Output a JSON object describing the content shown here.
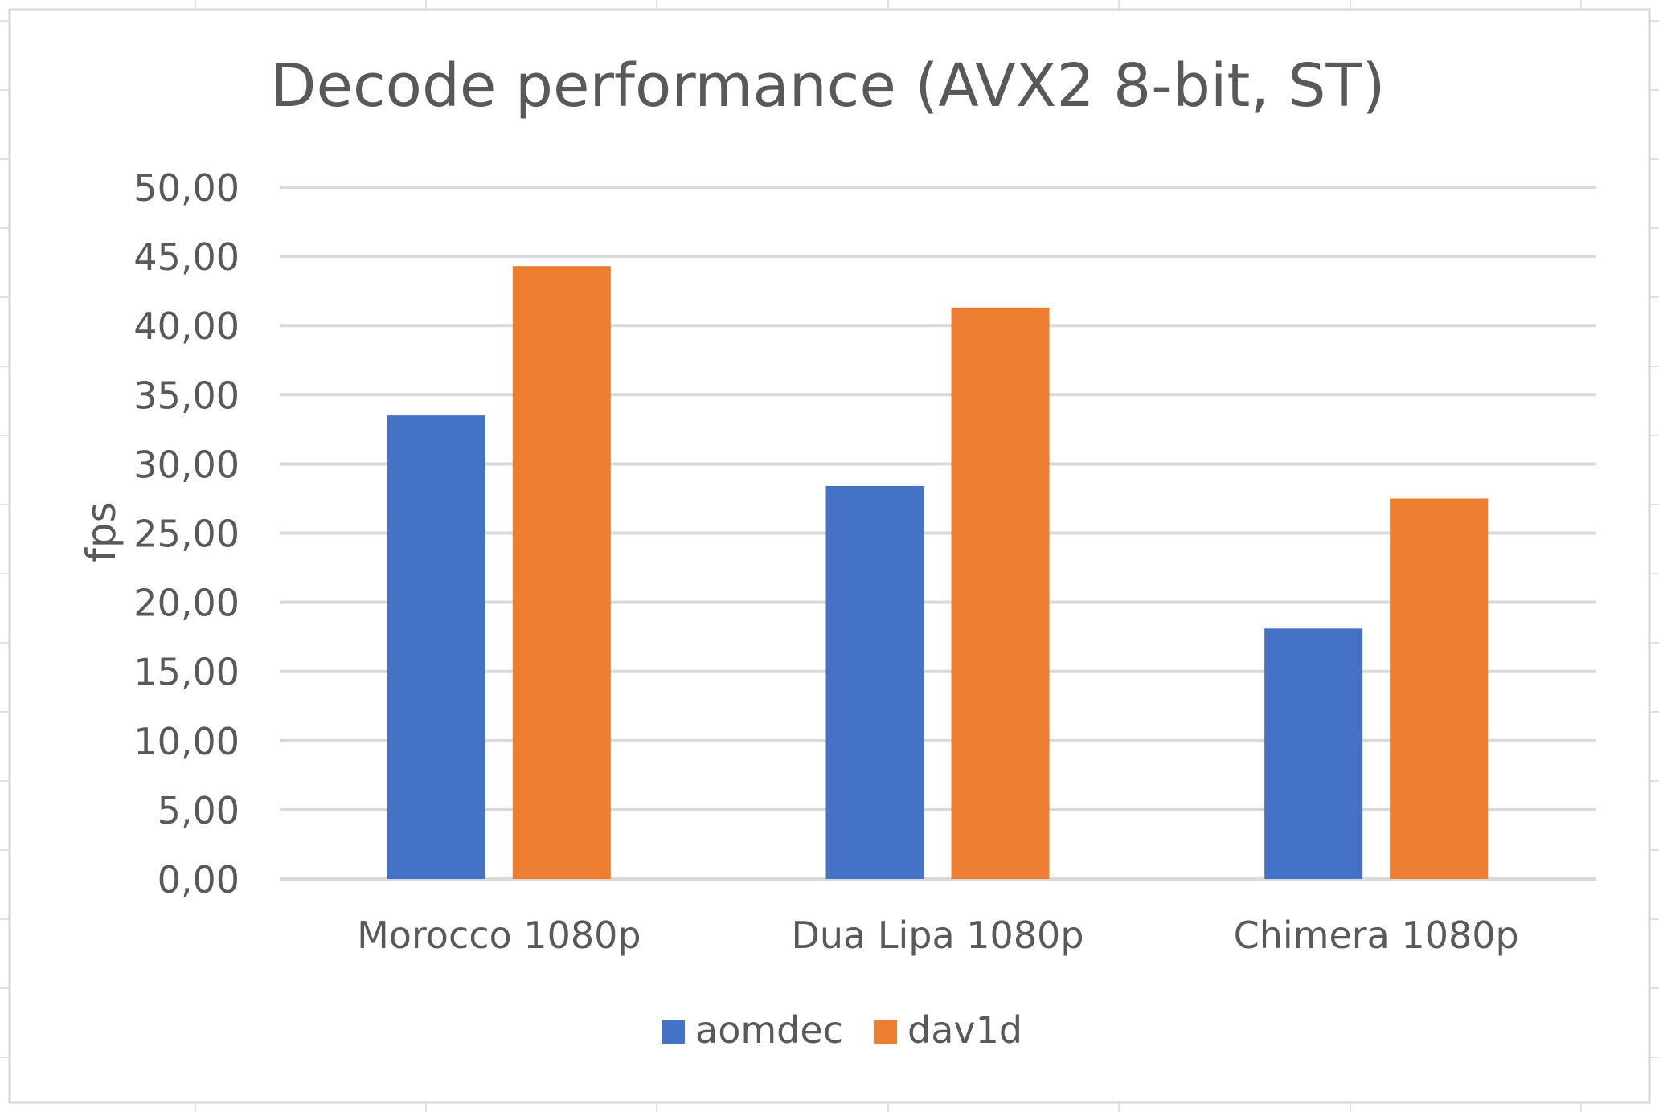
{
  "chart_data": {
    "type": "bar",
    "title": "Decode performance (AVX2 8-bit, ST)",
    "xlabel": "",
    "ylabel": "fps",
    "ylim": [
      0,
      50
    ],
    "yticks": [
      0,
      5,
      10,
      15,
      20,
      25,
      30,
      35,
      40,
      45,
      50
    ],
    "ytick_labels": [
      "0,00",
      "5,00",
      "10,00",
      "15,00",
      "20,00",
      "25,00",
      "30,00",
      "35,00",
      "40,00",
      "45,00",
      "50,00"
    ],
    "categories": [
      "Morocco 1080p",
      "Dua Lipa 1080p",
      "Chimera 1080p"
    ],
    "series": [
      {
        "name": "aomdec",
        "color": "#4472C4",
        "values": [
          33.5,
          28.4,
          18.1
        ]
      },
      {
        "name": "dav1d",
        "color": "#ED7D31",
        "values": [
          44.3,
          41.3,
          27.5
        ]
      }
    ],
    "grid": true,
    "legend_position": "bottom"
  },
  "colors": {
    "gridline": "#d9d9d9",
    "text": "#595959",
    "sheet_grid": "#e1e1e1",
    "frame": "#d4d4d4"
  }
}
